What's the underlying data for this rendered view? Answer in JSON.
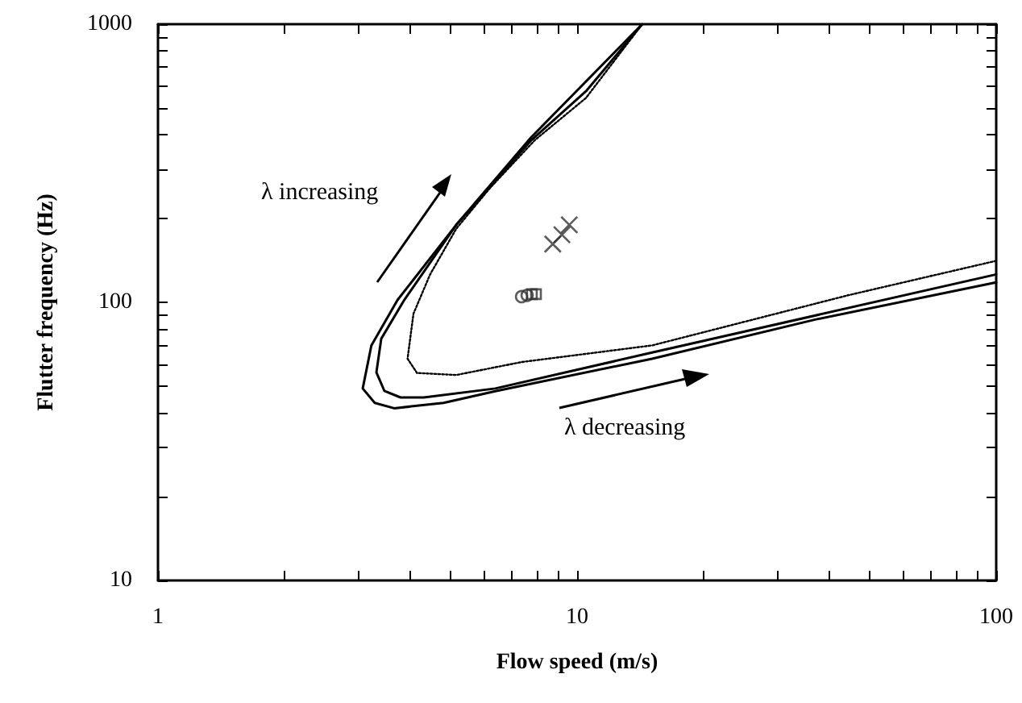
{
  "chart_data": {
    "type": "line",
    "xlabel": "Flow speed (m/s)",
    "ylabel": "Flutter frequency (Hz)",
    "log": "xy",
    "grid": false,
    "xlim": [
      1,
      100
    ],
    "ylim": [
      10,
      1000
    ],
    "xticks": [
      1,
      {
        "value": 2,
        "label": null
      },
      {
        "value": 3,
        "label": null
      },
      {
        "value": 4,
        "label": null
      },
      {
        "value": 5,
        "label": null
      },
      {
        "value": 6,
        "label": null
      },
      {
        "value": 7,
        "label": null
      },
      {
        "value": 8,
        "label": null
      },
      {
        "value": 9,
        "label": null
      },
      10,
      {
        "value": 20,
        "label": null
      },
      {
        "value": 30,
        "label": null
      },
      {
        "value": 40,
        "label": null
      },
      {
        "value": 50,
        "label": null
      },
      {
        "value": 60,
        "label": null
      },
      {
        "value": 70,
        "label": null
      },
      {
        "value": 80,
        "label": null
      },
      {
        "value": 90,
        "label": null
      },
      100
    ],
    "yticks": [
      10,
      {
        "value": 20,
        "label": null
      },
      {
        "value": 30,
        "label": null
      },
      {
        "value": 40,
        "label": null
      },
      {
        "value": 50,
        "label": null
      },
      {
        "value": 60,
        "label": null
      },
      {
        "value": 70,
        "label": null
      },
      {
        "value": 80,
        "label": null
      },
      {
        "value": 90,
        "label": null
      },
      100,
      {
        "value": 200,
        "label": null
      },
      {
        "value": 300,
        "label": null
      },
      {
        "value": 400,
        "label": null
      },
      {
        "value": 500,
        "label": null
      },
      {
        "value": 600,
        "label": null
      },
      {
        "value": 700,
        "label": null
      },
      {
        "value": 800,
        "label": null
      },
      {
        "value": 900,
        "label": null
      },
      1000
    ],
    "series": [
      {
        "type": "line",
        "color": "#000000",
        "line_style": "solid",
        "marker": "none",
        "x": [
          14.3,
          10.5,
          7.78,
          5.94,
          5.15,
          3.73,
          3.23,
          3.08,
          3.29,
          3.66,
          4.8,
          6.38,
          15.1,
          37,
          100
        ],
        "values": [
          1000,
          574,
          383,
          241,
          190,
          102,
          70,
          49,
          43.5,
          41.6,
          43.5,
          47.9,
          62.7,
          86.7,
          118
        ]
      },
      {
        "type": "line",
        "color": "#000000",
        "line_style": "solid",
        "marker": "none",
        "x": [
          14.3,
          7.78,
          5.15,
          3.87,
          3.41,
          3.32,
          3.47,
          3.79,
          4.31,
          6.38,
          15.1,
          100
        ],
        "values": [
          1000,
          393,
          190,
          102,
          74,
          56,
          48,
          45.5,
          45.5,
          49,
          66,
          126
        ]
      },
      {
        "type": "line",
        "color": "#000000",
        "line_style": "dotted",
        "marker": "none",
        "x": [
          14.3,
          10.5,
          7.93,
          6.16,
          5.15,
          4.46,
          4.07,
          3.94,
          4.15,
          5.15,
          7.38,
          15.1,
          44.3,
          100
        ],
        "values": [
          1000,
          543,
          383,
          255,
          184,
          126,
          91,
          62.7,
          55.7,
          54.8,
          61,
          70,
          106,
          141
        ]
      },
      {
        "type": "scatter",
        "color": "#333333",
        "marker": "circle",
        "x": [
          7.37,
          7.6
        ],
        "values": [
          104.8,
          106
        ]
      },
      {
        "type": "scatter",
        "color": "#333333",
        "marker": "square",
        "x": [
          7.8,
          7.98
        ],
        "values": [
          107,
          107
        ]
      },
      {
        "type": "scatter",
        "color": "#333333",
        "marker": "cross",
        "x": [
          8.75,
          9.2,
          9.58
        ],
        "values": [
          162,
          175,
          190
        ]
      }
    ],
    "annotations": [
      "λ increasing",
      "λ decreasing"
    ]
  }
}
